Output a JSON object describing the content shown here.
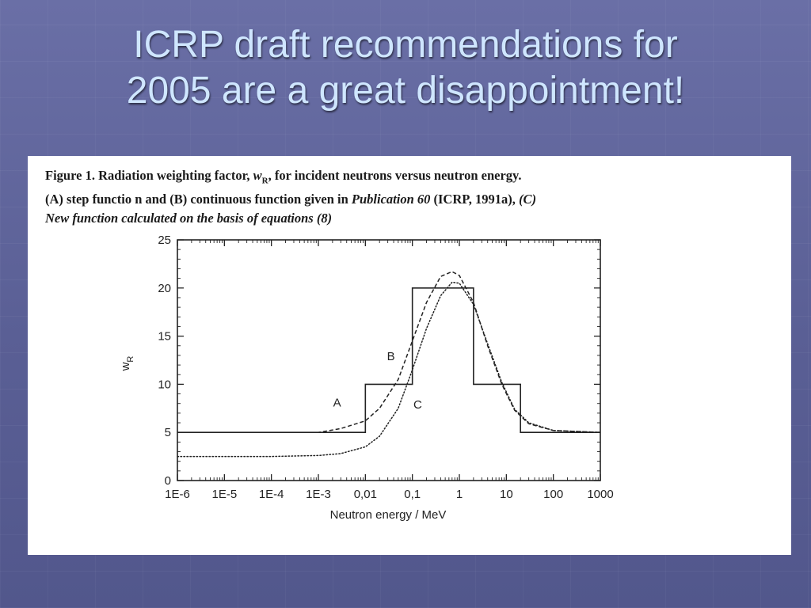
{
  "slide": {
    "title_line1": "ICRP draft recommendations for",
    "title_line2": "2005 are a great disappointment!"
  },
  "figure": {
    "caption_bold_1": "Figure 1. Radiation weighting factor, ",
    "caption_wr_symbol": "w",
    "caption_wr_sub": "R",
    "caption_bold_2": ", for incident neutrons versus neutron energy.",
    "caption_line2_a": "(A) step functio n and (B) continuous function given in ",
    "caption_line2_pub": "Publication 60",
    "caption_line2_b": " (ICRP, 1991a), ",
    "caption_line2_c": "(C)",
    "caption_line3": "New function calculated on the basis of equations (8)"
  },
  "chart_data": {
    "type": "line",
    "xlabel": "Neutron energy / MeV",
    "ylabel": "w",
    "ylabel_sub": "R",
    "x_scale": "log",
    "xlim": [
      1e-06,
      1000
    ],
    "ylim": [
      0,
      25
    ],
    "x_ticks": [
      {
        "value": 1e-06,
        "label": "1E-6"
      },
      {
        "value": 1e-05,
        "label": "1E-5"
      },
      {
        "value": 0.0001,
        "label": "1E-4"
      },
      {
        "value": 0.001,
        "label": "1E-3"
      },
      {
        "value": 0.01,
        "label": "0,01"
      },
      {
        "value": 0.1,
        "label": "0,1"
      },
      {
        "value": 1,
        "label": "1"
      },
      {
        "value": 10,
        "label": "10"
      },
      {
        "value": 100,
        "label": "100"
      },
      {
        "value": 1000,
        "label": "1000"
      }
    ],
    "y_ticks": [
      0,
      5,
      10,
      15,
      20,
      25
    ],
    "grid": false,
    "legend": "none",
    "series": [
      {
        "name": "A",
        "style": "solid",
        "label_pos": {
          "x": 0.0025,
          "y": 7.7
        },
        "points": [
          [
            1e-06,
            5
          ],
          [
            0.01,
            5
          ],
          [
            0.01,
            10
          ],
          [
            0.1,
            10
          ],
          [
            0.1,
            20
          ],
          [
            2,
            20
          ],
          [
            2,
            10
          ],
          [
            20,
            10
          ],
          [
            20,
            5
          ],
          [
            1000,
            5
          ]
        ]
      },
      {
        "name": "B",
        "style": "dashed",
        "label_pos": {
          "x": 0.035,
          "y": 12.5
        },
        "points": [
          [
            1e-06,
            5
          ],
          [
            0.0001,
            5
          ],
          [
            0.001,
            5.0
          ],
          [
            0.003,
            5.4
          ],
          [
            0.01,
            6.2
          ],
          [
            0.02,
            7.5
          ],
          [
            0.05,
            10.5
          ],
          [
            0.1,
            14.5
          ],
          [
            0.2,
            18.5
          ],
          [
            0.4,
            21.2
          ],
          [
            0.7,
            21.7
          ],
          [
            1,
            21.3
          ],
          [
            2,
            18.5
          ],
          [
            4,
            14.0
          ],
          [
            8,
            10.0
          ],
          [
            15,
            7.3
          ],
          [
            30,
            5.9
          ],
          [
            100,
            5.2
          ],
          [
            1000,
            5.0
          ]
        ]
      },
      {
        "name": "C",
        "style": "dotted",
        "label_pos": {
          "x": 0.13,
          "y": 7.5
        },
        "points": [
          [
            1e-06,
            2.5
          ],
          [
            0.0001,
            2.5
          ],
          [
            0.001,
            2.6
          ],
          [
            0.003,
            2.8
          ],
          [
            0.01,
            3.5
          ],
          [
            0.02,
            4.6
          ],
          [
            0.05,
            7.5
          ],
          [
            0.1,
            11.5
          ],
          [
            0.2,
            15.8
          ],
          [
            0.4,
            19.2
          ],
          [
            0.7,
            20.6
          ],
          [
            1,
            20.5
          ],
          [
            2,
            18.3
          ],
          [
            4,
            14.2
          ],
          [
            8,
            10.2
          ],
          [
            15,
            7.4
          ],
          [
            30,
            6.0
          ],
          [
            100,
            5.2
          ],
          [
            1000,
            5.0
          ]
        ]
      }
    ]
  }
}
